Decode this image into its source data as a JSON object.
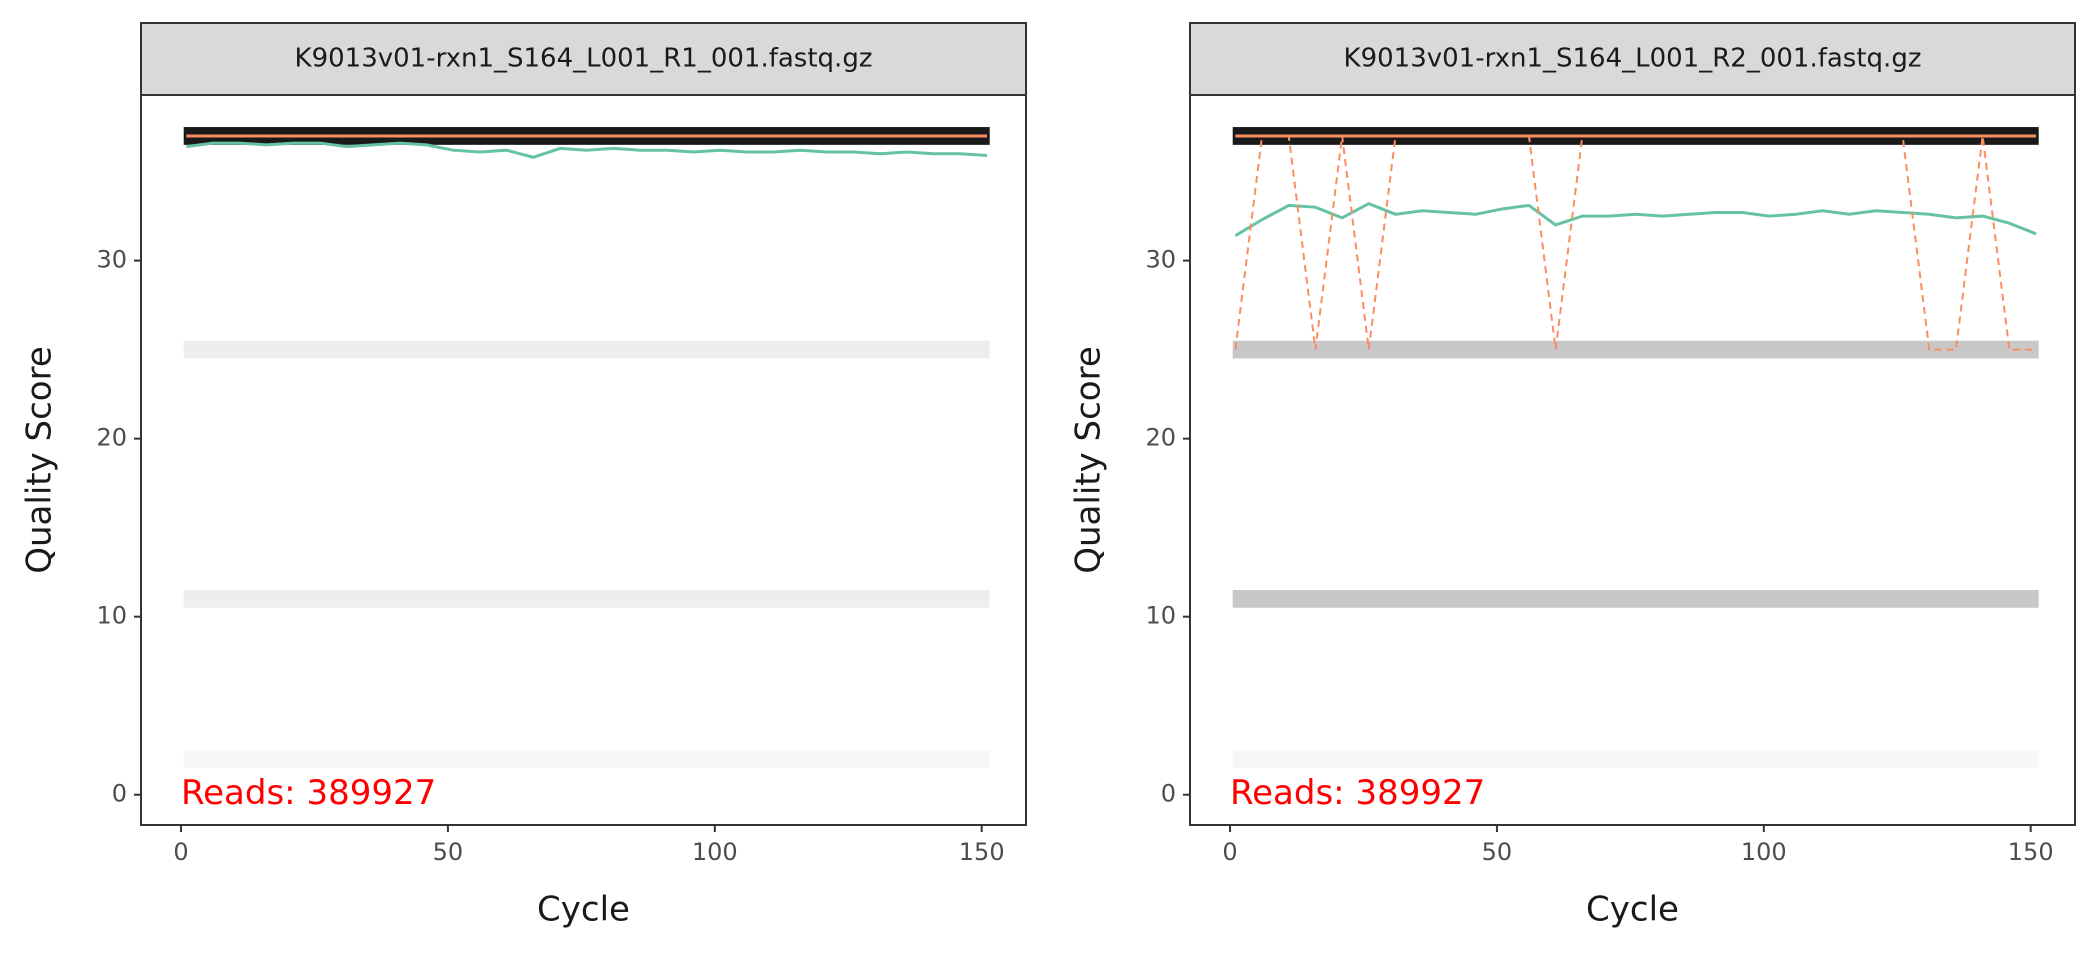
{
  "chart_data": [
    {
      "type": "line",
      "title": "K9013v01-rxn1_S164_L001_R1_001.fastq.gz",
      "x_label": "Cycle",
      "y_label": "Quality Score",
      "annotation": "Reads:  389927",
      "xlim": [
        -7.5,
        158.3
      ],
      "ylim": [
        -1.7,
        39.3
      ],
      "xticks": [
        0,
        50,
        100,
        150
      ],
      "yticks": [
        0,
        10,
        20,
        30
      ],
      "heatmap": {
        "y": [
          2,
          11,
          25,
          37
        ],
        "colors": [
          "#f7f7f7",
          "#eeeeee",
          "#eeeeee",
          "#1a1a1a"
        ]
      },
      "x": [
        1,
        6,
        11,
        16,
        21,
        26,
        31,
        36,
        41,
        46,
        51,
        56,
        61,
        66,
        71,
        76,
        81,
        86,
        91,
        96,
        101,
        106,
        111,
        116,
        121,
        126,
        131,
        136,
        141,
        146,
        151
      ],
      "series": [
        {
          "color": "#66c2a5",
          "dash": false,
          "values": [
            36.4,
            36.6,
            36.6,
            36.5,
            36.6,
            36.6,
            36.4,
            36.5,
            36.6,
            36.5,
            36.2,
            36.1,
            36.2,
            35.8,
            36.3,
            36.2,
            36.3,
            36.2,
            36.2,
            36.1,
            36.2,
            36.1,
            36.1,
            36.2,
            36.1,
            36.1,
            36.0,
            36.1,
            36.0,
            36.0,
            35.9
          ]
        },
        {
          "color": "#fc8d62",
          "dash": false,
          "values": [
            37,
            37,
            37,
            37,
            37,
            37,
            37,
            37,
            37,
            37,
            37,
            37,
            37,
            37,
            37,
            37,
            37,
            37,
            37,
            37,
            37,
            37,
            37,
            37,
            37,
            37,
            37,
            37,
            37,
            37,
            37
          ]
        },
        {
          "color": "#fc8d62",
          "dash": true,
          "values": [
            37,
            37,
            37,
            37,
            37,
            37,
            37,
            37,
            37,
            37,
            37,
            37,
            37,
            37,
            37,
            37,
            37,
            37,
            37,
            37,
            37,
            37,
            37,
            37,
            37,
            37,
            37,
            37,
            37,
            37,
            37
          ]
        }
      ]
    },
    {
      "type": "line",
      "title": "K9013v01-rxn1_S164_L001_R2_001.fastq.gz",
      "x_label": "Cycle",
      "y_label": "Quality Score",
      "annotation": "Reads:  389927",
      "xlim": [
        -7.5,
        158.3
      ],
      "ylim": [
        -1.7,
        39.3
      ],
      "xticks": [
        0,
        50,
        100,
        150
      ],
      "yticks": [
        0,
        10,
        20,
        30
      ],
      "heatmap": {
        "y": [
          2,
          11,
          25,
          37
        ],
        "colors": [
          "#f7f7f7",
          "#c8c8c8",
          "#c8c8c8",
          "#1a1a1a"
        ]
      },
      "x": [
        1,
        6,
        11,
        16,
        21,
        26,
        31,
        36,
        41,
        46,
        51,
        56,
        61,
        66,
        71,
        76,
        81,
        86,
        91,
        96,
        101,
        106,
        111,
        116,
        121,
        126,
        131,
        136,
        141,
        146,
        151
      ],
      "series": [
        {
          "color": "#66c2a5",
          "dash": false,
          "values": [
            31.4,
            32.3,
            33.1,
            33.0,
            32.4,
            33.2,
            32.6,
            32.8,
            32.7,
            32.6,
            32.9,
            33.1,
            32.0,
            32.5,
            32.5,
            32.6,
            32.5,
            32.6,
            32.7,
            32.7,
            32.5,
            32.6,
            32.8,
            32.6,
            32.8,
            32.7,
            32.6,
            32.4,
            32.5,
            32.1,
            31.5
          ]
        },
        {
          "color": "#fc8d62",
          "dash": false,
          "values": [
            37,
            37,
            37,
            37,
            37,
            37,
            37,
            37,
            37,
            37,
            37,
            37,
            37,
            37,
            37,
            37,
            37,
            37,
            37,
            37,
            37,
            37,
            37,
            37,
            37,
            37,
            37,
            37,
            37,
            37,
            37
          ]
        },
        {
          "color": "#fc8d62",
          "dash": true,
          "values": [
            25,
            37,
            37,
            25,
            37,
            25,
            37,
            37,
            37,
            37,
            37,
            37,
            25,
            37,
            37,
            37,
            37,
            37,
            37,
            37,
            37,
            37,
            37,
            37,
            37,
            37,
            25,
            25,
            37,
            25,
            25
          ]
        }
      ]
    }
  ]
}
